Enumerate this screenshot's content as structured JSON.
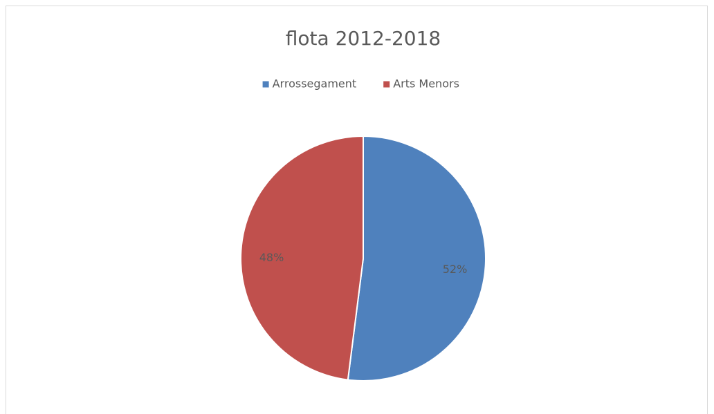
{
  "chart_data": {
    "type": "pie",
    "title": "flota 2012-2018",
    "categories": [
      "Arrossegament",
      "Arts Menors"
    ],
    "values": [
      52,
      48
    ],
    "value_labels": [
      "52%",
      "48%"
    ],
    "colors": [
      "#4f81bd",
      "#c0504d"
    ],
    "legend": "top"
  }
}
